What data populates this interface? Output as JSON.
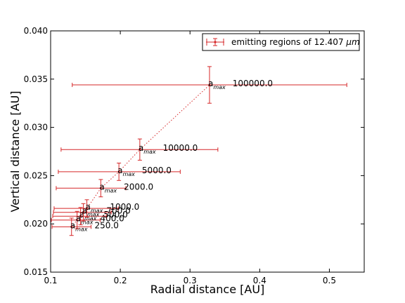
{
  "chart_data": {
    "type": "scatter",
    "title": "",
    "xlabel": "Radial distance [AU]",
    "ylabel": "Vertical distance [AU]",
    "xlim": [
      0.1,
      0.55
    ],
    "ylim": [
      0.015,
      0.04
    ],
    "xticks": [
      0.1,
      0.2,
      0.3,
      0.4,
      0.5
    ],
    "yticks": [
      0.015,
      0.02,
      0.025,
      0.03,
      0.035,
      0.04
    ],
    "xtick_labels": [
      "0.1",
      "0.2",
      "0.3",
      "0.4",
      "0.5"
    ],
    "ytick_labels": [
      "0.015",
      "0.020",
      "0.025",
      "0.030",
      "0.035",
      "0.040"
    ],
    "grid": false,
    "legend_position": "top-right",
    "series": [
      {
        "name": "emitting regions of 12.407",
        "name_unit": "μm",
        "color": "#d62728",
        "line_style": "dotted",
        "point_label_prefix": "a",
        "point_label_subscript": "max",
        "points": [
          {
            "x": 0.13,
            "y": 0.0197,
            "xerr_low": 0.028,
            "xerr_high": 0.028,
            "yerr": 0.0009,
            "label": "250.0"
          },
          {
            "x": 0.138,
            "y": 0.0204,
            "xerr_low": 0.037,
            "xerr_high": 0.033,
            "yerr": 0.0009,
            "label": "400.0"
          },
          {
            "x": 0.143,
            "y": 0.0208,
            "xerr_low": 0.04,
            "xerr_high": 0.037,
            "yerr": 0.0009,
            "label": "500.0"
          },
          {
            "x": 0.147,
            "y": 0.0212,
            "xerr_low": 0.043,
            "xerr_high": 0.04,
            "yerr": 0.0009,
            "label": "700.0"
          },
          {
            "x": 0.152,
            "y": 0.0216,
            "xerr_low": 0.047,
            "xerr_high": 0.045,
            "yerr": 0.0009,
            "label": "1000.0"
          },
          {
            "x": 0.172,
            "y": 0.0237,
            "xerr_low": 0.064,
            "xerr_high": 0.036,
            "yerr": 0.0009,
            "label": "2000.0"
          },
          {
            "x": 0.198,
            "y": 0.0254,
            "xerr_low": 0.087,
            "xerr_high": 0.088,
            "yerr": 0.0009,
            "label": "5000.0"
          },
          {
            "x": 0.228,
            "y": 0.0277,
            "xerr_low": 0.113,
            "xerr_high": 0.112,
            "yerr": 0.0011,
            "label": "10000.0"
          },
          {
            "x": 0.328,
            "y": 0.0344,
            "xerr_low": 0.197,
            "xerr_high": 0.197,
            "yerr": 0.0019,
            "label": "100000.0"
          }
        ]
      }
    ]
  }
}
